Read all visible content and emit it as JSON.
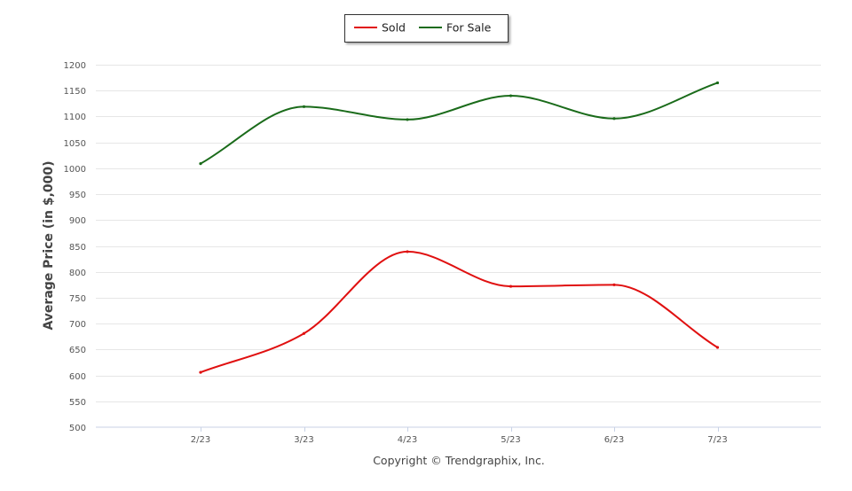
{
  "chart_data": {
    "type": "line",
    "categories": [
      "2/23",
      "3/23",
      "4/23",
      "5/23",
      "6/23",
      "7/23"
    ],
    "series": [
      {
        "name": "Sold",
        "color": "#e01010",
        "values": [
          606,
          681,
          839,
          772,
          775,
          654
        ]
      },
      {
        "name": "For Sale",
        "color": "#1a6b1a",
        "values": [
          1009,
          1119,
          1094,
          1140,
          1096,
          1165
        ]
      }
    ],
    "ylabel": "Average Price (in $,000)",
    "xlabel": "",
    "ylim": [
      500,
      1200
    ],
    "yticks": [
      500,
      550,
      600,
      650,
      700,
      750,
      800,
      850,
      900,
      950,
      1000,
      1050,
      1100,
      1150,
      1200
    ],
    "grid": true,
    "legend_position": "top-center",
    "footer": "Copyright © Trendgraphix, Inc."
  }
}
